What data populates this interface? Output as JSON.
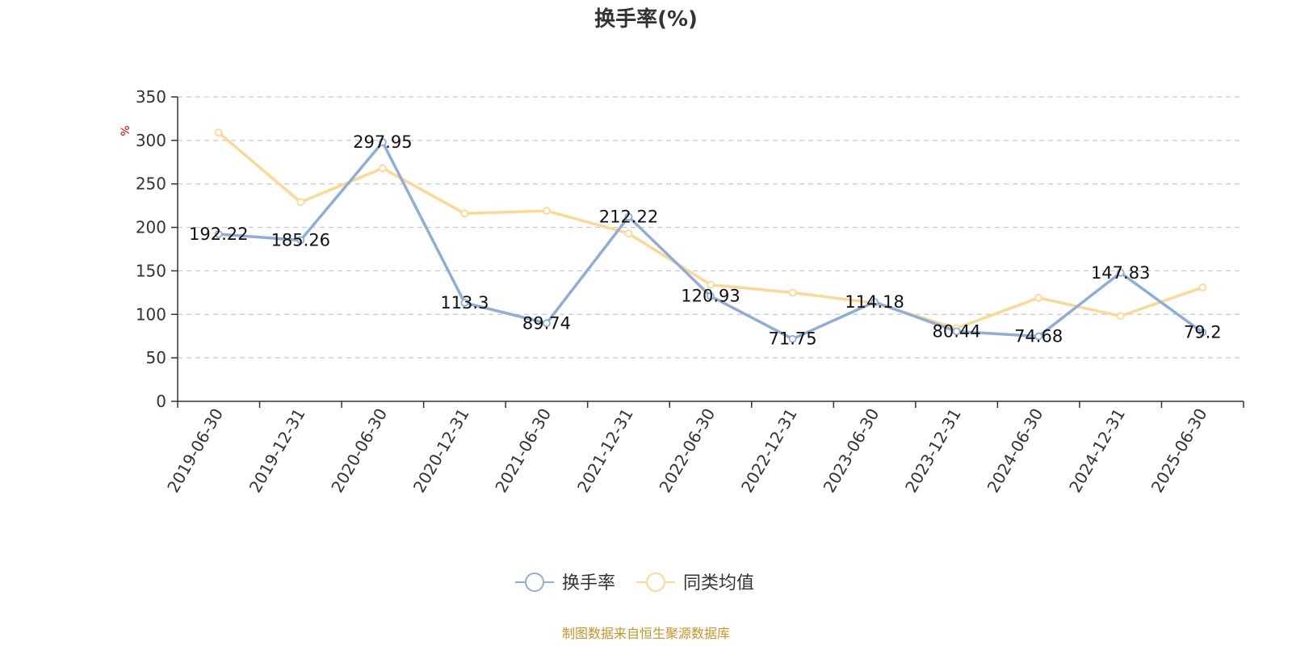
{
  "chart_data": {
    "type": "line",
    "title": "换手率(%)",
    "ylabel": "%",
    "xlabel": "",
    "ylim": [
      0,
      350
    ],
    "yticks": [
      0,
      50,
      100,
      150,
      200,
      250,
      300,
      350
    ],
    "grid": true,
    "legend_position": "bottom",
    "categories": [
      "2019-06-30",
      "2019-12-31",
      "2020-06-30",
      "2020-12-31",
      "2021-06-30",
      "2021-12-31",
      "2022-06-30",
      "2022-12-31",
      "2023-06-30",
      "2023-12-31",
      "2024-06-30",
      "2024-12-31",
      "2025-06-30"
    ],
    "series": [
      {
        "name": "换手率",
        "color": "#8eaed8",
        "values": [
          192.22,
          185.26,
          297.95,
          113.3,
          89.74,
          212.22,
          120.93,
          71.75,
          114.18,
          80.44,
          74.68,
          147.83,
          79.2
        ],
        "labels": [
          "192.22",
          "185.26",
          "297.95",
          "113.3",
          "89.74",
          "212.22",
          "120.93",
          "71.75",
          "114.18",
          "80.44",
          "74.68",
          "147.83",
          "79.2"
        ]
      },
      {
        "name": "同类均值",
        "color": "#fcd992",
        "values": [
          309,
          229,
          268,
          216,
          219,
          193,
          134,
          125,
          113,
          84,
          119,
          98,
          131
        ]
      }
    ]
  },
  "source_note": "制图数据来自恒生聚源数据库"
}
